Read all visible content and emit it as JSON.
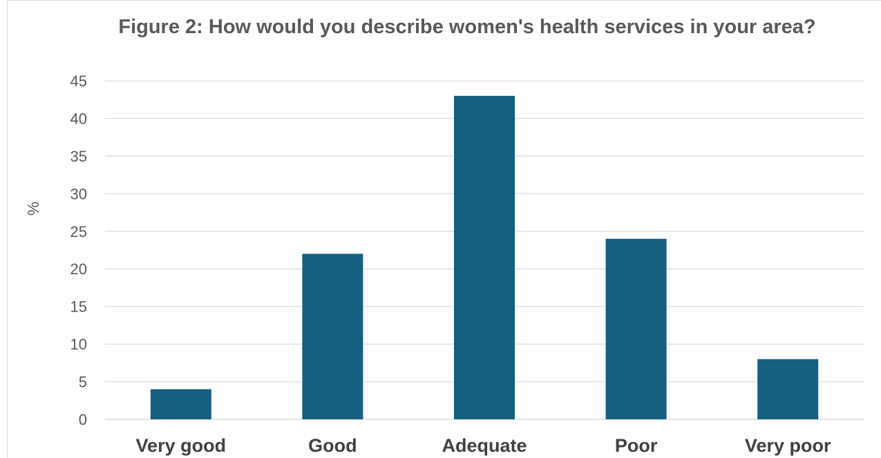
{
  "chart_data": {
    "type": "bar",
    "title": "Figure 2: How would you describe women's health services in your area?",
    "xlabel": "",
    "ylabel": "%",
    "categories": [
      "Very good",
      "Good",
      "Adequate",
      "Poor",
      "Very poor"
    ],
    "values": [
      4,
      22,
      43,
      24,
      8
    ],
    "ylim": [
      0,
      45
    ],
    "yticks": [
      0,
      5,
      10,
      15,
      20,
      25,
      30,
      35,
      40,
      45
    ],
    "grid": true,
    "legend": "none",
    "bar_color": "#155f80",
    "gridline_color": "#d9d9d9"
  }
}
